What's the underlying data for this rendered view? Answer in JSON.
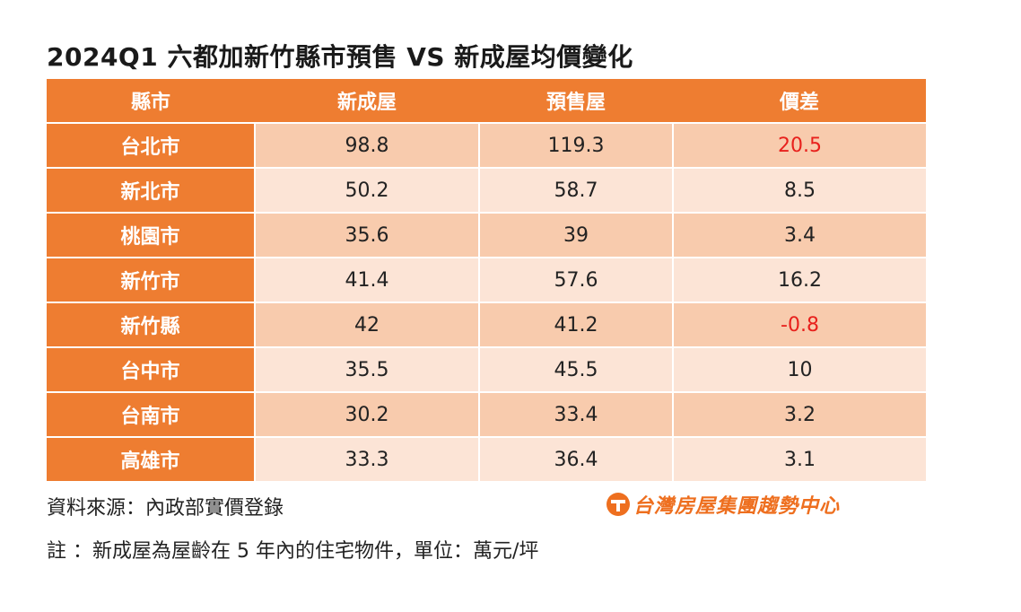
{
  "title": "2024Q1 六都加新竹縣市預售 VS 新成屋均價變化",
  "table": {
    "headers": [
      "縣市",
      "新成屋",
      "預售屋",
      "價差"
    ],
    "rows": [
      {
        "city": "台北市",
        "new": "98.8",
        "presale": "119.3",
        "diff": "20.5",
        "diff_highlight": true
      },
      {
        "city": "新北市",
        "new": "50.2",
        "presale": "58.7",
        "diff": "8.5",
        "diff_highlight": false
      },
      {
        "city": "桃園市",
        "new": "35.6",
        "presale": "39",
        "diff": "3.4",
        "diff_highlight": false
      },
      {
        "city": "新竹市",
        "new": "41.4",
        "presale": "57.6",
        "diff": "16.2",
        "diff_highlight": false
      },
      {
        "city": "新竹縣",
        "new": "42",
        "presale": "41.2",
        "diff": "-0.8",
        "diff_highlight": true
      },
      {
        "city": "台中市",
        "new": "35.5",
        "presale": "45.5",
        "diff": "10",
        "diff_highlight": false
      },
      {
        "city": "台南市",
        "new": "30.2",
        "presale": "33.4",
        "diff": "3.2",
        "diff_highlight": false
      },
      {
        "city": "高雄市",
        "new": "33.3",
        "presale": "36.4",
        "diff": "3.1",
        "diff_highlight": false
      }
    ]
  },
  "source": "資料來源：內政部實價登錄",
  "note": "註 ：新成屋為屋齡在 5 年內的住宅物件，單位：萬元/坪",
  "logo": {
    "icon": "taiwan-realty-logo-icon",
    "text": "台灣房屋集團趨勢中心"
  },
  "colors": {
    "header": "#ee7d31",
    "row_dark": "#f8cbad",
    "row_light": "#fce4d6",
    "highlight": "#e8201c",
    "logo": "#ee6f1f"
  }
}
